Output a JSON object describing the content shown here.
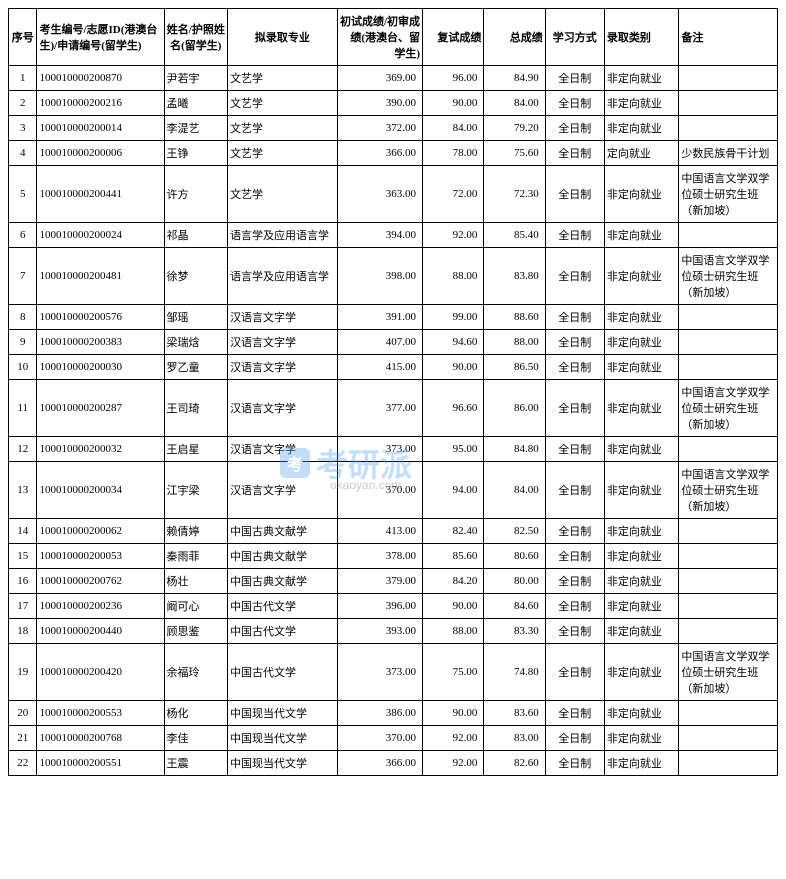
{
  "columns": [
    "序号",
    "考生编号/志愿ID(港澳台生)/申请编号(留学生)",
    "姓名/护照姓名(留学生)",
    "拟录取专业",
    "初试成绩/初审成绩(港澳台、留学生)",
    "复试成绩",
    "总成绩",
    "学习方式",
    "录取类别",
    "备注"
  ],
  "rows": [
    {
      "seq": "1",
      "id": "100010000200870",
      "name": "尹若宇",
      "major": "文艺学",
      "s1": "369.00",
      "s2": "96.00",
      "s3": "84.90",
      "mode": "全日制",
      "type": "非定向就业",
      "remark": ""
    },
    {
      "seq": "2",
      "id": "100010000200216",
      "name": "孟曦",
      "major": "文艺学",
      "s1": "390.00",
      "s2": "90.00",
      "s3": "84.00",
      "mode": "全日制",
      "type": "非定向就业",
      "remark": ""
    },
    {
      "seq": "3",
      "id": "100010000200014",
      "name": "李湜艺",
      "major": "文艺学",
      "s1": "372.00",
      "s2": "84.00",
      "s3": "79.20",
      "mode": "全日制",
      "type": "非定向就业",
      "remark": ""
    },
    {
      "seq": "4",
      "id": "100010000200006",
      "name": "王铮",
      "major": "文艺学",
      "s1": "366.00",
      "s2": "78.00",
      "s3": "75.60",
      "mode": "全日制",
      "type": "定向就业",
      "remark": "少数民族骨干计划"
    },
    {
      "seq": "5",
      "id": "100010000200441",
      "name": "许方",
      "major": "文艺学",
      "s1": "363.00",
      "s2": "72.00",
      "s3": "72.30",
      "mode": "全日制",
      "type": "非定向就业",
      "remark": "中国语言文学双学位硕士研究生班（新加坡）"
    },
    {
      "seq": "6",
      "id": "100010000200024",
      "name": "祁晶",
      "major": "语言学及应用语言学",
      "s1": "394.00",
      "s2": "92.00",
      "s3": "85.40",
      "mode": "全日制",
      "type": "非定向就业",
      "remark": ""
    },
    {
      "seq": "7",
      "id": "100010000200481",
      "name": "徐梦",
      "major": "语言学及应用语言学",
      "s1": "398.00",
      "s2": "88.00",
      "s3": "83.80",
      "mode": "全日制",
      "type": "非定向就业",
      "remark": "中国语言文学双学位硕士研究生班（新加坡）"
    },
    {
      "seq": "8",
      "id": "100010000200576",
      "name": "邹瑶",
      "major": "汉语言文字学",
      "s1": "391.00",
      "s2": "99.00",
      "s3": "88.60",
      "mode": "全日制",
      "type": "非定向就业",
      "remark": ""
    },
    {
      "seq": "9",
      "id": "100010000200383",
      "name": "梁瑞焓",
      "major": "汉语言文字学",
      "s1": "407.00",
      "s2": "94.60",
      "s3": "88.00",
      "mode": "全日制",
      "type": "非定向就业",
      "remark": ""
    },
    {
      "seq": "10",
      "id": "100010000200030",
      "name": "罗乙童",
      "major": "汉语言文字学",
      "s1": "415.00",
      "s2": "90.00",
      "s3": "86.50",
      "mode": "全日制",
      "type": "非定向就业",
      "remark": ""
    },
    {
      "seq": "11",
      "id": "100010000200287",
      "name": "王司琦",
      "major": "汉语言文字学",
      "s1": "377.00",
      "s2": "96.60",
      "s3": "86.00",
      "mode": "全日制",
      "type": "非定向就业",
      "remark": "中国语言文学双学位硕士研究生班（新加坡）"
    },
    {
      "seq": "12",
      "id": "100010000200032",
      "name": "王启星",
      "major": "汉语言文字学",
      "s1": "373.00",
      "s2": "95.00",
      "s3": "84.80",
      "mode": "全日制",
      "type": "非定向就业",
      "remark": ""
    },
    {
      "seq": "13",
      "id": "100010000200034",
      "name": "江宇梁",
      "major": "汉语言文字学",
      "s1": "370.00",
      "s2": "94.00",
      "s3": "84.00",
      "mode": "全日制",
      "type": "非定向就业",
      "remark": "中国语言文学双学位硕士研究生班（新加坡）"
    },
    {
      "seq": "14",
      "id": "100010000200062",
      "name": "赖倩婷",
      "major": "中国古典文献学",
      "s1": "413.00",
      "s2": "82.40",
      "s3": "82.50",
      "mode": "全日制",
      "type": "非定向就业",
      "remark": ""
    },
    {
      "seq": "15",
      "id": "100010000200053",
      "name": "秦雨菲",
      "major": "中国古典文献学",
      "s1": "378.00",
      "s2": "85.60",
      "s3": "80.60",
      "mode": "全日制",
      "type": "非定向就业",
      "remark": ""
    },
    {
      "seq": "16",
      "id": "100010000200762",
      "name": "杨壮",
      "major": "中国古典文献学",
      "s1": "379.00",
      "s2": "84.20",
      "s3": "80.00",
      "mode": "全日制",
      "type": "非定向就业",
      "remark": ""
    },
    {
      "seq": "17",
      "id": "100010000200236",
      "name": "阚可心",
      "major": "中国古代文学",
      "s1": "396.00",
      "s2": "90.00",
      "s3": "84.60",
      "mode": "全日制",
      "type": "非定向就业",
      "remark": ""
    },
    {
      "seq": "18",
      "id": "100010000200440",
      "name": "顾思鉴",
      "major": "中国古代文学",
      "s1": "393.00",
      "s2": "88.00",
      "s3": "83.30",
      "mode": "全日制",
      "type": "非定向就业",
      "remark": ""
    },
    {
      "seq": "19",
      "id": "100010000200420",
      "name": "余福玲",
      "major": "中国古代文学",
      "s1": "373.00",
      "s2": "75.00",
      "s3": "74.80",
      "mode": "全日制",
      "type": "非定向就业",
      "remark": "中国语言文学双学位硕士研究生班（新加坡）"
    },
    {
      "seq": "20",
      "id": "100010000200553",
      "name": "杨化",
      "major": "中国现当代文学",
      "s1": "386.00",
      "s2": "90.00",
      "s3": "83.60",
      "mode": "全日制",
      "type": "非定向就业",
      "remark": ""
    },
    {
      "seq": "21",
      "id": "100010000200768",
      "name": "李佳",
      "major": "中国现当代文学",
      "s1": "370.00",
      "s2": "92.00",
      "s3": "83.00",
      "mode": "全日制",
      "type": "非定向就业",
      "remark": ""
    },
    {
      "seq": "22",
      "id": "100010000200551",
      "name": "王震",
      "major": "中国现当代文学",
      "s1": "366.00",
      "s2": "92.00",
      "s3": "82.60",
      "mode": "全日制",
      "type": "非定向就业",
      "remark": ""
    }
  ],
  "watermark": {
    "text": "考研派",
    "sub": "okaoyan.com",
    "icon": "考"
  }
}
